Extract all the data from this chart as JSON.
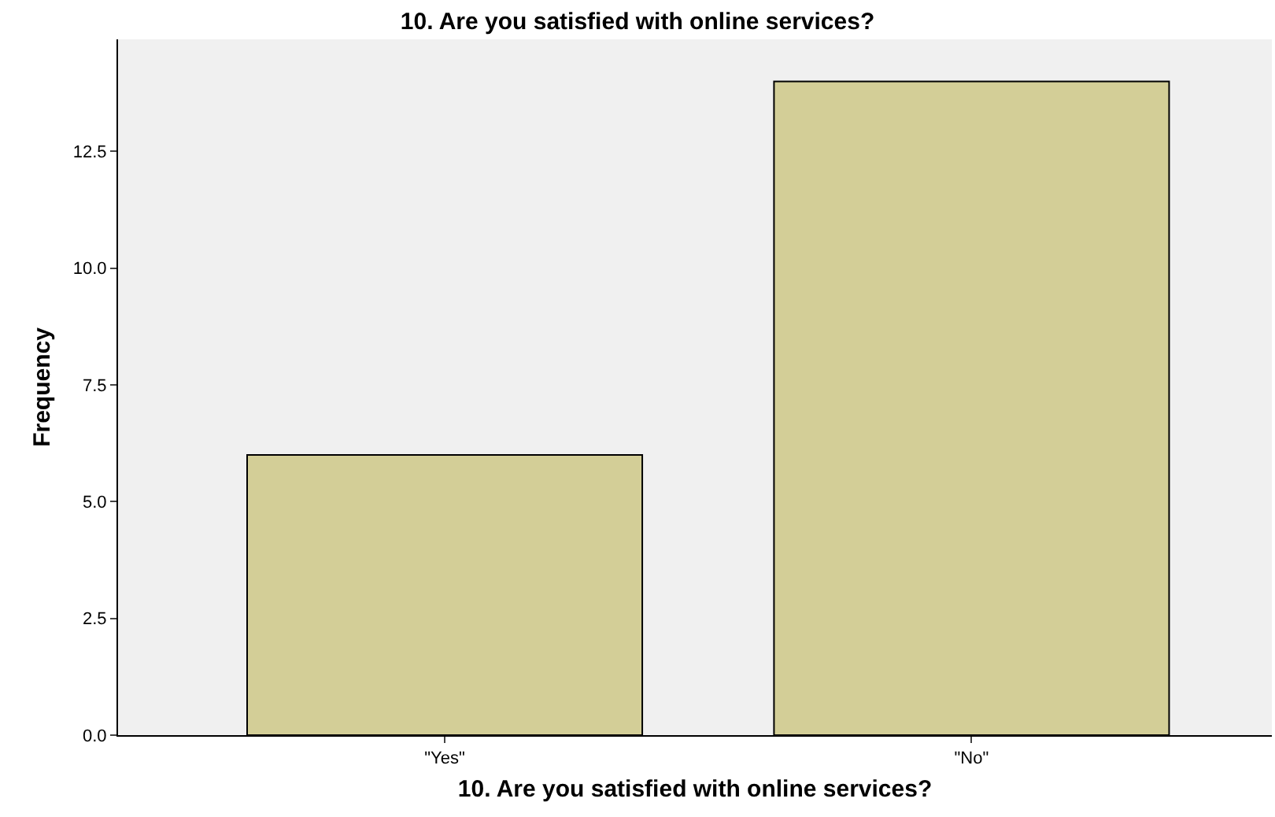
{
  "chart_data": {
    "type": "bar",
    "title": "10. Are you satisfied with online services?",
    "xlabel": "10. Are you satisfied with online services?",
    "ylabel": "Frequency",
    "categories": [
      "\"Yes\"",
      "\"No\""
    ],
    "values": [
      6,
      14
    ],
    "color": "#d3ce97",
    "ylim": [
      0,
      14.9
    ],
    "yticks": [
      {
        "value": 0,
        "label": "0.0"
      },
      2.5,
      {
        "value": 5,
        "label": "5.0"
      },
      7.5,
      {
        "value": 10,
        "label": "10.0"
      },
      12.5
    ],
    "grid": false,
    "legend": false
  }
}
